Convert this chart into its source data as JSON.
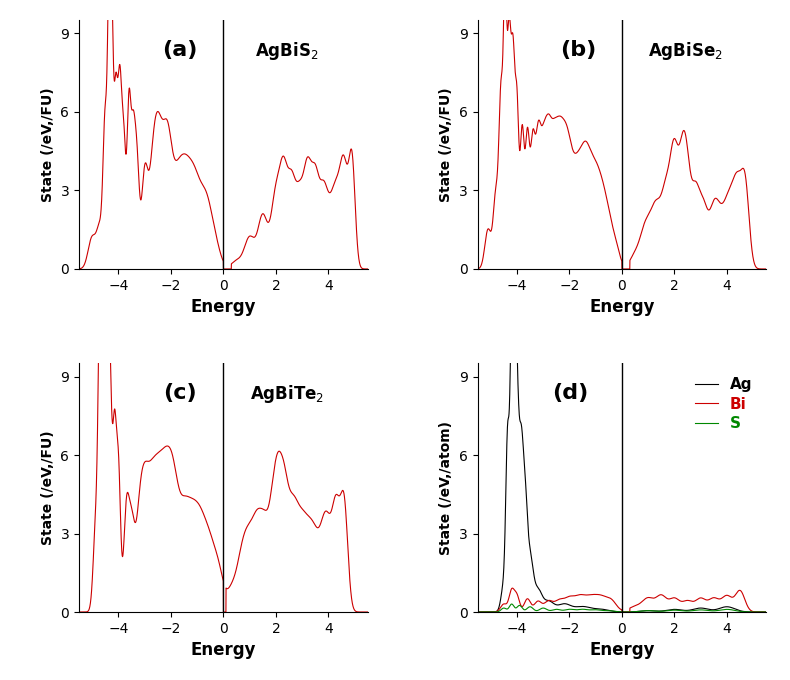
{
  "xlim": [
    -5.5,
    5.5
  ],
  "ylim": [
    0,
    9.5
  ],
  "yticks": [
    0,
    3,
    6,
    9
  ],
  "xticks": [
    -4,
    -2,
    0,
    2,
    4
  ],
  "line_color_total": "#cc0000",
  "line_color_ag": "#000000",
  "line_color_bi": "#cc0000",
  "line_color_s": "#008800",
  "ylabel_total": "State (/eV,/FU)",
  "ylabel_pdos": "State (/eV,/atom)",
  "xlabel": "Energy",
  "panel_labels": [
    "(a)",
    "(b)",
    "(c)",
    "(d)"
  ],
  "compound_labels": [
    "AgBiS$_2$",
    "AgBiSe$_2$",
    "AgBiTe$_2$"
  ],
  "pdos_labels": [
    "Ag",
    "Bi",
    "S"
  ],
  "vline_x": 0,
  "ylim_pdos": [
    0,
    9.5
  ],
  "background_color": "#ffffff",
  "linewidth": 0.8
}
